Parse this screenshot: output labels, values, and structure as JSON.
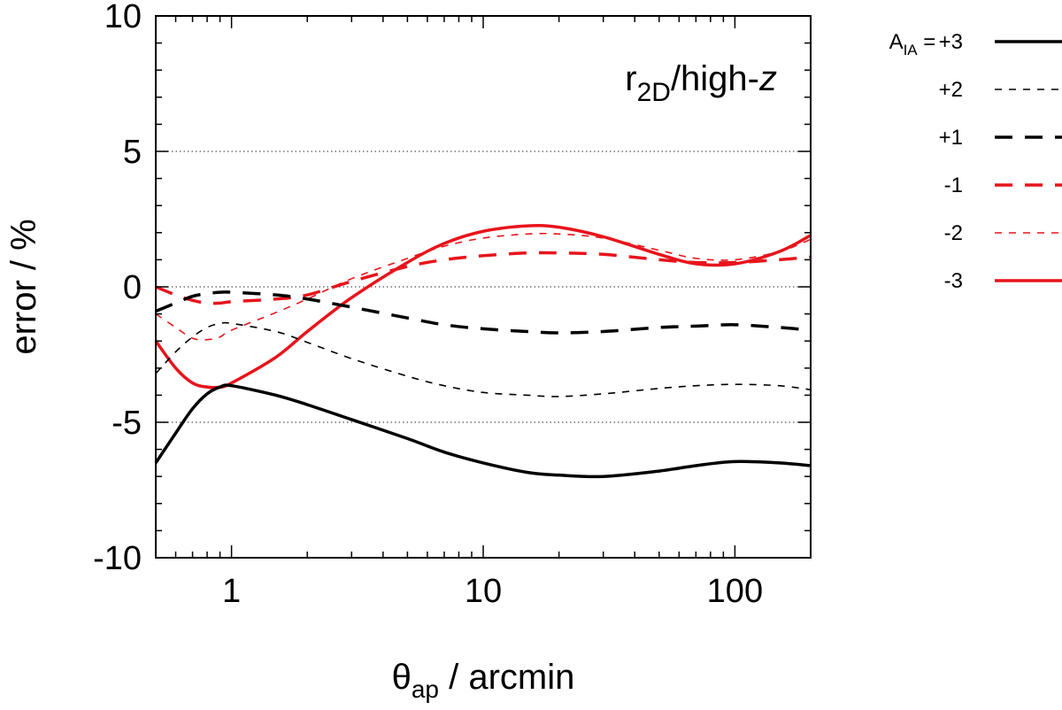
{
  "chart_data": {
    "type": "line",
    "title": "",
    "annotation": {
      "main": "r",
      "sub": "2D",
      "mid": "/high-",
      "italic": "z"
    },
    "xlabel": {
      "main": "θ",
      "sub": "ap",
      "rest": " / arcmin"
    },
    "ylabel": "error / %",
    "xscale": "log",
    "xlim": [
      0.5,
      200
    ],
    "ylim": [
      -10,
      10
    ],
    "x_ticks": [
      1,
      10,
      100
    ],
    "x_tick_labels": [
      "1",
      "10",
      "100"
    ],
    "y_ticks": [
      -10,
      -5,
      0,
      5,
      10
    ],
    "y_tick_labels": [
      "-10",
      "-5",
      "0",
      "5",
      "10"
    ],
    "gridlines_y": [
      -5,
      0,
      5
    ],
    "legend": {
      "position": "right-outside",
      "prefix": {
        "main": "A",
        "sub": "IA",
        "rest": " = "
      }
    },
    "colors": {
      "black": "#000000",
      "red": "#e8141c",
      "grid": "#555555"
    },
    "series": [
      {
        "name": "+3",
        "label": "+3",
        "color": "#000000",
        "style": "solid",
        "width": 3.5,
        "x": [
          0.5,
          0.6,
          0.7,
          0.8,
          0.9,
          1.0,
          1.5,
          2,
          3,
          5,
          7,
          10,
          15,
          20,
          30,
          50,
          70,
          100,
          150,
          200
        ],
        "y": [
          -6.5,
          -5.4,
          -4.5,
          -3.95,
          -3.7,
          -3.65,
          -4.0,
          -4.35,
          -4.9,
          -5.6,
          -6.1,
          -6.5,
          -6.85,
          -6.95,
          -7.0,
          -6.8,
          -6.6,
          -6.45,
          -6.5,
          -6.6
        ]
      },
      {
        "name": "+2",
        "label": "+2",
        "color": "#000000",
        "style": "thin-dash",
        "width": 1.6,
        "x": [
          0.5,
          0.6,
          0.7,
          0.8,
          0.9,
          1.0,
          1.5,
          2,
          3,
          5,
          7,
          10,
          15,
          20,
          30,
          50,
          70,
          100,
          150,
          200
        ],
        "y": [
          -3.2,
          -2.4,
          -1.85,
          -1.5,
          -1.35,
          -1.35,
          -1.65,
          -2.05,
          -2.65,
          -3.3,
          -3.65,
          -3.9,
          -4.0,
          -4.05,
          -3.95,
          -3.75,
          -3.65,
          -3.6,
          -3.65,
          -3.8
        ]
      },
      {
        "name": "+1",
        "label": "+1",
        "color": "#000000",
        "style": "thick-dash",
        "width": 3.5,
        "x": [
          0.5,
          0.6,
          0.7,
          0.8,
          0.9,
          1.0,
          1.5,
          2,
          3,
          5,
          7,
          10,
          15,
          20,
          30,
          50,
          70,
          100,
          150,
          200
        ],
        "y": [
          -0.9,
          -0.6,
          -0.35,
          -0.25,
          -0.2,
          -0.2,
          -0.3,
          -0.45,
          -0.75,
          -1.15,
          -1.4,
          -1.55,
          -1.65,
          -1.7,
          -1.65,
          -1.5,
          -1.45,
          -1.4,
          -1.5,
          -1.6
        ]
      },
      {
        "name": "-1",
        "label": "-1",
        "color": "#e8141c",
        "style": "thick-dash",
        "width": 3.5,
        "x": [
          0.5,
          0.6,
          0.7,
          0.8,
          0.9,
          1.0,
          1.5,
          2,
          3,
          5,
          7,
          10,
          15,
          20,
          30,
          50,
          70,
          100,
          150,
          200
        ],
        "y": [
          0.0,
          -0.3,
          -0.5,
          -0.6,
          -0.6,
          -0.55,
          -0.45,
          -0.3,
          0.2,
          0.75,
          1.0,
          1.15,
          1.25,
          1.25,
          1.2,
          1.0,
          0.9,
          0.9,
          1.0,
          1.1
        ]
      },
      {
        "name": "-2",
        "label": "-2",
        "color": "#e8141c",
        "style": "thin-dash",
        "width": 1.6,
        "x": [
          0.5,
          0.6,
          0.7,
          0.8,
          0.9,
          1.0,
          1.5,
          2,
          3,
          5,
          7,
          10,
          15,
          20,
          30,
          50,
          70,
          100,
          150,
          200
        ],
        "y": [
          -1.0,
          -1.5,
          -1.9,
          -1.95,
          -1.85,
          -1.6,
          -0.95,
          -0.45,
          0.3,
          1.05,
          1.5,
          1.8,
          1.95,
          1.95,
          1.8,
          1.35,
          1.05,
          1.0,
          1.3,
          1.75
        ]
      },
      {
        "name": "-3",
        "label": "-3",
        "color": "#e8141c",
        "style": "solid",
        "width": 3.5,
        "x": [
          0.5,
          0.6,
          0.7,
          0.8,
          0.9,
          1.0,
          1.5,
          2,
          3,
          5,
          7,
          10,
          15,
          20,
          30,
          50,
          70,
          100,
          150,
          200
        ],
        "y": [
          -2.0,
          -3.0,
          -3.55,
          -3.7,
          -3.7,
          -3.55,
          -2.6,
          -1.65,
          -0.4,
          0.9,
          1.6,
          2.05,
          2.25,
          2.2,
          1.85,
          1.2,
          0.85,
          0.85,
          1.3,
          1.9
        ]
      }
    ]
  }
}
